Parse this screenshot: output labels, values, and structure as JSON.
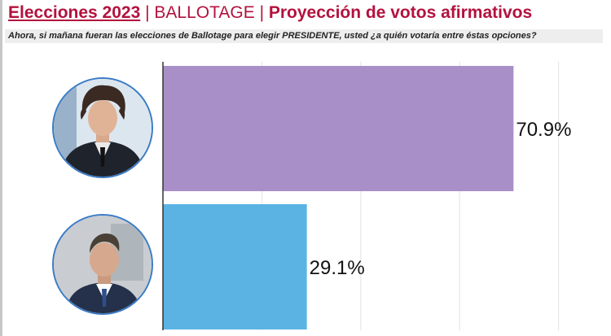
{
  "header": {
    "title_part1": "Elecciones 2023",
    "separator1": " | ",
    "title_part2": "BALLOTAGE",
    "separator2": " | ",
    "title_part3": "Proyección de votos afirmativos",
    "subtitle": "Ahora, si mañana fueran las elecciones de Ballotage para elegir PRESIDENTE, usted ¿a quién votaría entre éstas opciones?"
  },
  "colors": {
    "title": "#b3123d",
    "bar_1": "#a98fc8",
    "bar_2": "#5bb3e3",
    "avatar_border": "#3b7bc6"
  },
  "icons": [
    "candidate-1-avatar",
    "candidate-2-avatar"
  ],
  "chart_data": {
    "type": "bar",
    "orientation": "horizontal",
    "categories": [
      "",
      ""
    ],
    "values": [
      70.9,
      29.1
    ],
    "value_labels": [
      "70.9%",
      "29.1%"
    ],
    "title": "",
    "xlabel": "",
    "ylabel": "",
    "xlim": [
      0,
      100
    ],
    "grid": true,
    "legend": "none"
  }
}
